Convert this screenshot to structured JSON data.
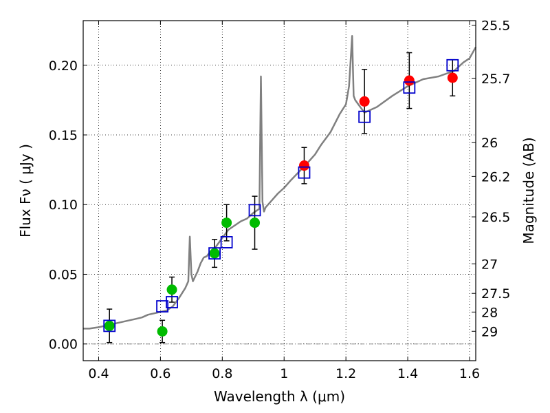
{
  "chart_data": {
    "type": "scatter",
    "xlabel": "Wavelength  λ (μm)",
    "ylabel": "Flux  Fν  ( μJy )",
    "y2label": "Magnitude (AB)",
    "xlim": [
      0.35,
      1.62
    ],
    "ylim": [
      -0.012,
      0.232
    ],
    "grid": true,
    "x_ticks": [
      0.4,
      0.6,
      0.8,
      1.0,
      1.2,
      1.4,
      1.6
    ],
    "x_tick_labels": [
      "0.4",
      "0.6",
      "0.8",
      "1",
      "1.2",
      "1.4",
      "1.6"
    ],
    "y_ticks": [
      0.0,
      0.05,
      0.1,
      0.15,
      0.2
    ],
    "y_tick_labels": [
      "0.00",
      "0.05",
      "0.10",
      "0.15",
      "0.20"
    ],
    "y2_ticks": [
      {
        "label": "25.5",
        "flux": 0.2287
      },
      {
        "label": "25.7",
        "flux": 0.1905
      },
      {
        "label": "26",
        "flux": 0.1445
      },
      {
        "label": "26.2",
        "flux": 0.1202
      },
      {
        "label": "26.5",
        "flux": 0.0912
      },
      {
        "label": "27",
        "flux": 0.0575
      },
      {
        "label": "27.5",
        "flux": 0.0363
      },
      {
        "label": "28",
        "flux": 0.0229
      },
      {
        "label": "29",
        "flux": 0.0091
      }
    ],
    "model_spectrum": {
      "color": "#808080",
      "x": [
        0.35,
        0.37,
        0.4,
        0.42,
        0.44,
        0.46,
        0.48,
        0.5,
        0.52,
        0.54,
        0.56,
        0.58,
        0.6,
        0.62,
        0.64,
        0.66,
        0.68,
        0.69,
        0.695,
        0.7,
        0.705,
        0.72,
        0.73,
        0.74,
        0.75,
        0.76,
        0.78,
        0.8,
        0.82,
        0.84,
        0.86,
        0.88,
        0.9,
        0.92,
        0.925,
        0.93,
        0.935,
        0.94,
        0.96,
        0.98,
        1.0,
        1.02,
        1.05,
        1.08,
        1.1,
        1.12,
        1.15,
        1.18,
        1.2,
        1.21,
        1.22,
        1.225,
        1.23,
        1.24,
        1.26,
        1.3,
        1.35,
        1.4,
        1.45,
        1.5,
        1.55,
        1.58,
        1.6,
        1.62
      ],
      "y": [
        0.011,
        0.011,
        0.012,
        0.013,
        0.014,
        0.015,
        0.016,
        0.017,
        0.018,
        0.019,
        0.021,
        0.022,
        0.023,
        0.024,
        0.027,
        0.033,
        0.04,
        0.045,
        0.077,
        0.05,
        0.045,
        0.052,
        0.058,
        0.062,
        0.063,
        0.066,
        0.07,
        0.076,
        0.082,
        0.085,
        0.088,
        0.09,
        0.094,
        0.097,
        0.192,
        0.102,
        0.095,
        0.098,
        0.103,
        0.108,
        0.112,
        0.117,
        0.124,
        0.131,
        0.136,
        0.143,
        0.152,
        0.165,
        0.172,
        0.185,
        0.221,
        0.178,
        0.175,
        0.172,
        0.166,
        0.17,
        0.178,
        0.185,
        0.19,
        0.192,
        0.196,
        0.202,
        0.205,
        0.213
      ]
    },
    "series": [
      {
        "name": "",
        "marker": "circle",
        "color": "#00bb00",
        "points": [
          {
            "x": 0.435,
            "y": 0.013,
            "err": 0.012
          },
          {
            "x": 0.606,
            "y": 0.009,
            "err": 0.008
          },
          {
            "x": 0.637,
            "y": 0.039,
            "err": 0.009
          },
          {
            "x": 0.775,
            "y": 0.065,
            "err": 0.01
          },
          {
            "x": 0.814,
            "y": 0.087,
            "err": 0.013
          },
          {
            "x": 0.905,
            "y": 0.087,
            "err": 0.019
          }
        ]
      },
      {
        "name": "",
        "marker": "circle",
        "color": "#ff0000",
        "points": [
          {
            "x": 1.065,
            "y": 0.128,
            "err": 0.013
          },
          {
            "x": 1.26,
            "y": 0.174,
            "err": 0.023
          },
          {
            "x": 1.405,
            "y": 0.189,
            "err": 0.02
          },
          {
            "x": 1.545,
            "y": 0.191,
            "err": 0.013
          }
        ]
      },
      {
        "name": "",
        "marker": "square",
        "color": "#0000cc",
        "points": [
          {
            "x": 0.435,
            "y": 0.013
          },
          {
            "x": 0.606,
            "y": 0.027
          },
          {
            "x": 0.637,
            "y": 0.03
          },
          {
            "x": 0.775,
            "y": 0.065
          },
          {
            "x": 0.814,
            "y": 0.073
          },
          {
            "x": 0.905,
            "y": 0.096
          },
          {
            "x": 1.065,
            "y": 0.123
          },
          {
            "x": 1.26,
            "y": 0.163
          },
          {
            "x": 1.405,
            "y": 0.184
          },
          {
            "x": 1.545,
            "y": 0.2
          }
        ]
      }
    ],
    "reference_line": {
      "y": 0.0,
      "style": "dashdot",
      "color": "#808080"
    }
  }
}
